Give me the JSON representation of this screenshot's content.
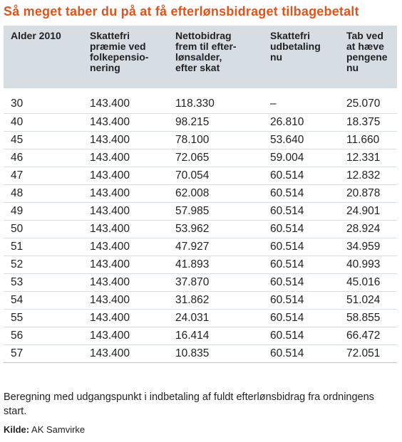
{
  "title": "Så meget taber du på at få efterlønsbidraget tilbagebetalt",
  "table": {
    "headers": [
      [
        "Alder 2010"
      ],
      [
        "Skattefri",
        "præmie ved",
        "folkepensio-",
        "nering"
      ],
      [
        "Nettobidrag",
        "frem til efter-",
        "lønsalder,",
        "efter skat"
      ],
      [
        "Skattefri",
        "udbetaling",
        "nu"
      ],
      [
        "Tab ved",
        "at hæve",
        "pengene",
        "nu"
      ]
    ],
    "rows": [
      [
        "30",
        "143.400",
        "118.330",
        "–",
        "25.070"
      ],
      [
        "40",
        "143.400",
        "98.215",
        "26.810",
        "18.375"
      ],
      [
        "45",
        "143.400",
        "78.100",
        "53.640",
        "11.660"
      ],
      [
        "46",
        "143.400",
        "72.065",
        "59.004",
        "12.331"
      ],
      [
        "47",
        "143.400",
        "70.054",
        "60.514",
        "12.832"
      ],
      [
        "48",
        "143.400",
        "62.008",
        "60.514",
        "20.878"
      ],
      [
        "49",
        "143.400",
        "57.985",
        "60.514",
        "24.901"
      ],
      [
        "50",
        "143.400",
        "53.962",
        "60.514",
        "28.924"
      ],
      [
        "51",
        "143.400",
        "47.927",
        "60.514",
        "34.959"
      ],
      [
        "52",
        "143.400",
        "41.893",
        "60.514",
        "40.993"
      ],
      [
        "53",
        "143.400",
        "37.870",
        "60.514",
        "45.016"
      ],
      [
        "54",
        "143.400",
        "31.862",
        "60.514",
        "51.024"
      ],
      [
        "55",
        "143.400",
        "24.031",
        "60.514",
        "58.855"
      ],
      [
        "56",
        "143.400",
        "16.414",
        "60.514",
        "66.472"
      ],
      [
        "57",
        "143.400",
        "10.835",
        "60.514",
        "72.051"
      ]
    ]
  },
  "note": "Beregning med udgangspunkt i indbetaling af fuldt efterlønsbidrag fra ordningens start.",
  "source": {
    "label": "Kilde:",
    "value": "AK Samvirke"
  },
  "colors": {
    "title": "#e2541a",
    "header_bg": "#d6dde3"
  }
}
